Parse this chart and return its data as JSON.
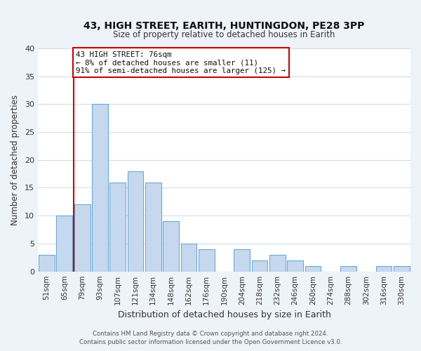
{
  "title": "43, HIGH STREET, EARITH, HUNTINGDON, PE28 3PP",
  "subtitle": "Size of property relative to detached houses in Earith",
  "xlabel": "Distribution of detached houses by size in Earith",
  "ylabel": "Number of detached properties",
  "footer_line1": "Contains HM Land Registry data © Crown copyright and database right 2024.",
  "footer_line2": "Contains public sector information licensed under the Open Government Licence v3.0.",
  "categories": [
    "51sqm",
    "65sqm",
    "79sqm",
    "93sqm",
    "107sqm",
    "121sqm",
    "134sqm",
    "148sqm",
    "162sqm",
    "176sqm",
    "190sqm",
    "204sqm",
    "218sqm",
    "232sqm",
    "246sqm",
    "260sqm",
    "274sqm",
    "288sqm",
    "302sqm",
    "316sqm",
    "330sqm"
  ],
  "values": [
    3,
    10,
    12,
    30,
    16,
    18,
    16,
    9,
    5,
    4,
    0,
    4,
    2,
    3,
    2,
    1,
    0,
    1,
    0,
    1,
    1
  ],
  "bar_color": "#c5d8ee",
  "bar_edge_color": "#6aaad4",
  "vline_color": "#cc0000",
  "annotation_title": "43 HIGH STREET: 76sqm",
  "annotation_line1": "← 8% of detached houses are smaller (11)",
  "annotation_line2": "91% of semi-detached houses are larger (125) →",
  "annotation_box_color": "#ffffff",
  "annotation_box_edge": "#cc0000",
  "ylim": [
    0,
    40
  ],
  "yticks": [
    0,
    5,
    10,
    15,
    20,
    25,
    30,
    35,
    40
  ],
  "bg_color": "#eef2f9",
  "plot_bg_color": "#ffffff",
  "grid_color": "#d0d8e8"
}
